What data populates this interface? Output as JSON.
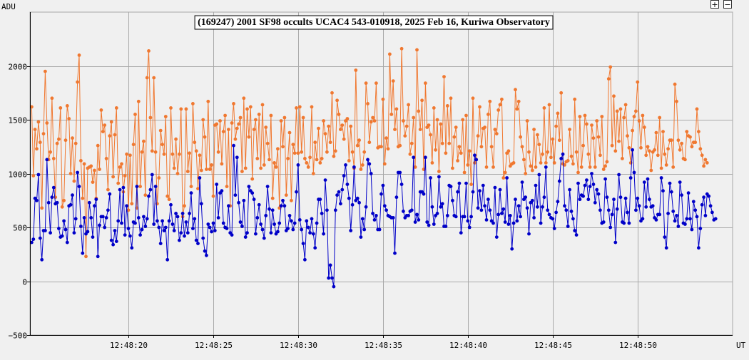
{
  "toolbar": {
    "zoom_in": "+",
    "zoom_out": "−"
  },
  "colors": {
    "background": "#f0f0f0",
    "grid": "#a9a9a9",
    "axis": "#000000",
    "series_target": "#0000c8",
    "series_comparison": "#f07830"
  },
  "chart_data": {
    "type": "line",
    "title": "(169247) 2001 SF98 occults UCAC4 543-010918, 2025 Feb 16, Kuriwa Observatory",
    "ylabel": "ADU",
    "xlabel": "UT",
    "ylim": [
      -500,
      2500
    ],
    "xlim": [
      "12:48:14.2",
      "12:48:55.6"
    ],
    "yticks": [
      -500,
      0,
      500,
      1000,
      1500,
      2000
    ],
    "xticks": [
      "12:48:20",
      "12:48:25",
      "12:48:30",
      "12:48:35",
      "12:48:40",
      "12:48:45",
      "12:48:50"
    ],
    "grid": true,
    "sampling": "approximately 10 samples per second from 12:48:14.3; values estimated from the plot",
    "series": [
      {
        "name": "",
        "color": "#0000c8",
        "values": [
          360,
          390,
          770,
          750,
          990,
          400,
          200,
          470,
          470,
          1130,
          730,
          450,
          780,
          870,
          720,
          730,
          490,
          410,
          420,
          560,
          480,
          360,
          700,
          710,
          800,
          450,
          580,
          1010,
          880,
          510,
          260,
          590,
          440,
          460,
          730,
          590,
          410,
          700,
          760,
          230,
          520,
          600,
          600,
          500,
          590,
          660,
          810,
          380,
          340,
          470,
          370,
          560,
          850,
          540,
          870,
          430,
          700,
          490,
          420,
          310,
          550,
          540,
          880,
          590,
          430,
          480,
          600,
          510,
          580,
          790,
          850,
          990,
          530,
          880,
          560,
          500,
          350,
          560,
          470,
          500,
          200,
          560,
          710,
          530,
          470,
          630,
          600,
          380,
          450,
          630,
          420,
          550,
          450,
          630,
          820,
          490,
          580,
          380,
          350,
          960,
          720,
          400,
          280,
          240,
          530,
          500,
          460,
          540,
          470,
          900,
          590,
          820,
          840,
          540,
          500,
          490,
          700,
          450,
          430,
          1260,
          800,
          1150,
          730,
          550,
          510,
          750,
          410,
          450,
          880,
          840,
          820,
          760,
          440,
          590,
          710,
          530,
          480,
          400,
          610,
          880,
          670,
          450,
          660,
          530,
          440,
          460,
          540,
          700,
          750,
          700,
          470,
          490,
          610,
          560,
          480,
          540,
          830,
          1080,
          570,
          480,
          350,
          200,
          560,
          500,
          450,
          580,
          440,
          310,
          540,
          760,
          760,
          630,
          440,
          940,
          660,
          30,
          150,
          30,
          -50,
          660,
          800,
          830,
          720,
          850,
          980,
          1080,
          900,
          770,
          470,
          710,
          1060,
          750,
          770,
          730,
          410,
          580,
          480,
          690,
          1130,
          1090,
          1000,
          630,
          570,
          610,
          480,
          480,
          810,
          890,
          700,
          660,
          610,
          600,
          590,
          590,
          260,
          780,
          1010,
          1010,
          900,
          650,
          590,
          610,
          610,
          650,
          660,
          1150,
          550,
          620,
          570,
          830,
          830,
          810,
          1150,
          550,
          520,
          960,
          690,
          530,
          610,
          630,
          970,
          690,
          720,
          510,
          510,
          610,
          890,
          880,
          750,
          610,
          600,
          830,
          910,
          450,
          600,
          600,
          910,
          560,
          500,
          600,
          830,
          1170,
          1130,
          680,
          840,
          660,
          890,
          700,
          570,
          760,
          660,
          560,
          540,
          870,
          410,
          620,
          850,
          630,
          670,
          550,
          960,
          530,
          610,
          300,
          540,
          760,
          560,
          700,
          600,
          920,
          760,
          780,
          680,
          440,
          730,
          750,
          590,
          890,
          690,
          990,
          540,
          690,
          780,
          1060,
          660,
          620,
          590,
          580,
          490,
          640,
          740,
          930,
          1140,
          1180,
          700,
          660,
          510,
          850,
          650,
          580,
          470,
          430,
          910,
          760,
          800,
          790,
          890,
          940,
          760,
          880,
          1000,
          900,
          730,
          850,
          810,
          660,
          540,
          550,
          950,
          780,
          660,
          500,
          620,
          760,
          360,
          670,
          990,
          780,
          550,
          540,
          770,
          640,
          540,
          960,
          1220,
          1010,
          660,
          770,
          700,
          560,
          580,
          920,
          690,
          950,
          760,
          690,
          700,
          590,
          570,
          620,
          620,
          960,
          840,
          410,
          310,
          630,
          910,
          830,
          650,
          560,
          610,
          510,
          920,
          800,
          540,
          530,
          580,
          820,
          580,
          480,
          740,
          660,
          600,
          310,
          490,
          710,
          780,
          610,
          810,
          790,
          700,
          640,
          570,
          580
        ]
      },
      {
        "name": "",
        "color": "#f07830",
        "values": [
          1620,
          980,
          1410,
          1230,
          1480,
          1290,
          680,
          1370,
          1950,
          1470,
          1130,
          1200,
          1700,
          1140,
          780,
          1280,
          1320,
          1610,
          690,
          750,
          1310,
          1630,
          1510,
          1000,
          1330,
          930,
          1280,
          1850,
          2100,
          1120,
          770,
          1090,
          230,
          1050,
          1060,
          1070,
          920,
          1030,
          770,
          1260,
          1040,
          1590,
          1390,
          1450,
          1140,
          850,
          1350,
          1480,
          970,
          1360,
          1610,
          910,
          1060,
          1090,
          830,
          980,
          1180,
          660,
          1170,
          720,
          1270,
          1550,
          680,
          1670,
          880,
          1200,
          1300,
          800,
          1890,
          2140,
          1520,
          1210,
          1890,
          1200,
          720,
          960,
          1400,
          1270,
          1180,
          1530,
          790,
          760,
          1610,
          1180,
          1050,
          1320,
          1000,
          1180,
          1600,
          600,
          700,
          1600,
          1020,
          1190,
          880,
          1650,
          1290,
          1210,
          860,
          1170,
          1030,
          1500,
          1340,
          1040,
          1670,
          1040,
          1080,
          790,
          1450,
          1460,
          1200,
          1490,
          1090,
          1390,
          1540,
          880,
          1410,
          700,
          1470,
          1650,
          1320,
          1420,
          1460,
          1520,
          1020,
          1700,
          1050,
          1600,
          1340,
          1620,
          950,
          1410,
          1500,
          1140,
          1550,
          1050,
          1640,
          1080,
          1430,
          1280,
          1130,
          1540,
          770,
          1100,
          1060,
          1230,
          680,
          1490,
          1250,
          1520,
          800,
          1140,
          1380,
          750,
          1270,
          1190,
          1610,
          1190,
          1620,
          1200,
          1520,
          1140,
          1100,
          1060,
          1150,
          1620,
          1000,
          1290,
          1130,
          1420,
          1100,
          1140,
          1490,
          1370,
          1200,
          1440,
          1290,
          1750,
          1160,
          1210,
          1680,
          1550,
          1410,
          1450,
          1320,
          1490,
          1510,
          1120,
          1440,
          1200,
          1050,
          1960,
          1260,
          1310,
          1040,
          1080,
          1200,
          1840,
          1650,
          1290,
          1480,
          1520,
          1490,
          1840,
          1240,
          1250,
          1250,
          1690,
          1090,
          1330,
          1230,
          2110,
          1550,
          1860,
          1410,
          1600,
          1250,
          1260,
          2160,
          1490,
          1350,
          1440,
          1640,
          1180,
          1280,
          1520,
          1060,
          2150,
          1580,
          1410,
          1680,
          1040,
          1840,
          1430,
          1450,
          1360,
          1100,
          1610,
          1220,
          1500,
          1020,
          1460,
          1280,
          1900,
          1190,
          1630,
          1280,
          1700,
          1050,
          1340,
          1430,
          1120,
          1250,
          1190,
          1500,
          1010,
          1540,
          1080,
          1210,
          900,
          1700,
          1100,
          1130,
          1350,
          1620,
          1250,
          1420,
          1430,
          1060,
          1550,
          1670,
          1250,
          1060,
          1410,
          1370,
          1590,
          1640,
          1690,
          960,
          1010,
          1190,
          1210,
          1070,
          1090,
          1100,
          1780,
          1600,
          1670,
          1340,
          1250,
          1130,
          1000,
          1490,
          1200,
          1070,
          1030,
          1410,
          1060,
          1360,
          1270,
          1100,
          1180,
          1610,
          1100,
          1200,
          1640,
          1150,
          1320,
          1100,
          1440,
          1560,
          1310,
          1750,
          1090,
          1080,
          1110,
          1120,
          1410,
          1160,
          1090,
          1690,
          1200,
          1010,
          1530,
          1060,
          1260,
          1540,
          1460,
          1180,
          1060,
          1450,
          1330,
          1060,
          1490,
          1340,
          1170,
          1530,
          1040,
          1070,
          1110,
          1880,
          1990,
          1260,
          1720,
          1210,
          1580,
          1300,
          1600,
          1140,
          1520,
          1640,
          1350,
          1240,
          1100,
          1400,
          1530,
          1580,
          1850,
          1490,
          1240,
          1540,
          1430,
          1170,
          1250,
          1210,
          1030,
          1200,
          1220,
          1380,
          1170,
          1520,
          1050,
          1390,
          1180,
          1080,
          1230,
          1310,
          1310,
          1060,
          1830,
          1670,
          1310,
          1220,
          1280,
          1140,
          1130,
          1390,
          1350,
          1340,
          1250,
          1290,
          1290,
          1600,
          1390,
          1230,
          1170,
          1070,
          1130,
          1100
        ]
      }
    ]
  }
}
